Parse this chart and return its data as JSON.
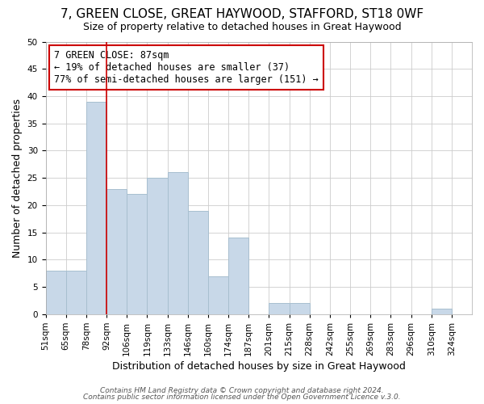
{
  "title": "7, GREEN CLOSE, GREAT HAYWOOD, STAFFORD, ST18 0WF",
  "subtitle": "Size of property relative to detached houses in Great Haywood",
  "xlabel": "Distribution of detached houses by size in Great Haywood",
  "ylabel": "Number of detached properties",
  "bin_labels": [
    "51sqm",
    "65sqm",
    "78sqm",
    "92sqm",
    "106sqm",
    "119sqm",
    "133sqm",
    "146sqm",
    "160sqm",
    "174sqm",
    "187sqm",
    "201sqm",
    "215sqm",
    "228sqm",
    "242sqm",
    "255sqm",
    "269sqm",
    "283sqm",
    "296sqm",
    "310sqm",
    "324sqm"
  ],
  "bar_values": [
    8,
    8,
    39,
    23,
    22,
    25,
    26,
    19,
    7,
    14,
    0,
    2,
    2,
    0,
    0,
    0,
    0,
    0,
    0,
    1,
    0
  ],
  "bar_color": "#c8d8e8",
  "bar_edge_color": "#a8bfcf",
  "vline_color": "#cc0000",
  "annotation_text": "7 GREEN CLOSE: 87sqm\n← 19% of detached houses are smaller (37)\n77% of semi-detached houses are larger (151) →",
  "annotation_box_edge_color": "#cc0000",
  "annotation_box_face_color": "#ffffff",
  "ylim": [
    0,
    50
  ],
  "yticks": [
    0,
    5,
    10,
    15,
    20,
    25,
    30,
    35,
    40,
    45,
    50
  ],
  "footer1": "Contains HM Land Registry data © Crown copyright and database right 2024.",
  "footer2": "Contains public sector information licensed under the Open Government Licence v.3.0.",
  "title_fontsize": 11,
  "subtitle_fontsize": 9,
  "axis_label_fontsize": 9,
  "tick_fontsize": 7.5,
  "annotation_fontsize": 8.5,
  "footer_fontsize": 6.5,
  "background_color": "#ffffff",
  "grid_color": "#cccccc"
}
